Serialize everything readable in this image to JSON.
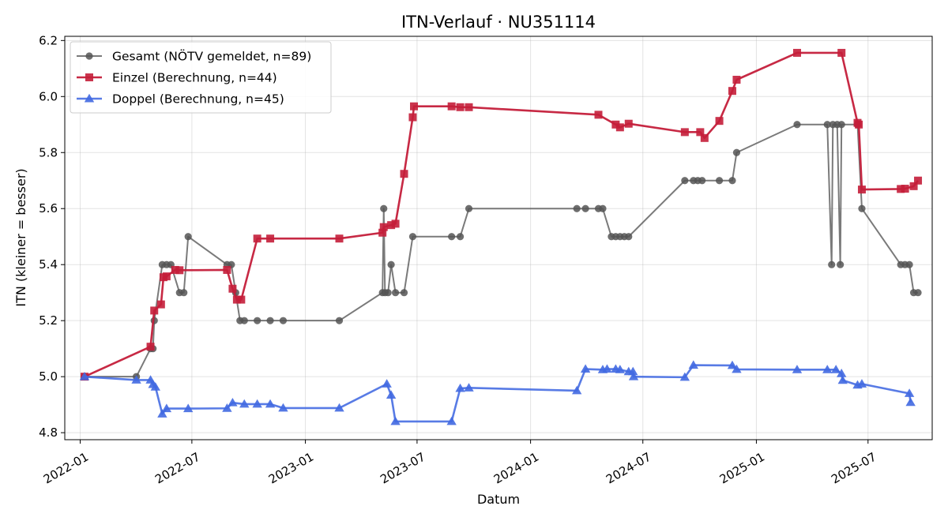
{
  "chart_data": {
    "type": "line",
    "title": "ITN-Verlauf · NU351114",
    "xlabel": "Datum",
    "ylabel": "ITN  (kleiner = besser)",
    "x_ticks": [
      "2022-01",
      "2022-07",
      "2023-01",
      "2023-07",
      "2024-01",
      "2024-07",
      "2025-01",
      "2025-07"
    ],
    "y_ticks": [
      "4.8",
      "5.0",
      "5.2",
      "5.4",
      "5.6",
      "5.8",
      "6.0",
      "6.2"
    ],
    "xlim": [
      "2021-12-07",
      "2025-10-13"
    ],
    "ylim": [
      4.775,
      6.215
    ],
    "grid": true,
    "legend_position": "top-left",
    "series": [
      {
        "name": "Gesamt (NÖTV gemeldet, n=89)",
        "color": "#555555",
        "marker": "circle",
        "points": [
          [
            "2022-01-08",
            5.0
          ],
          [
            "2022-04-02",
            5.0
          ],
          [
            "2022-04-25",
            5.1
          ],
          [
            "2022-04-29",
            5.1
          ],
          [
            "2022-05-01",
            5.2
          ],
          [
            "2022-05-14",
            5.4
          ],
          [
            "2022-05-21",
            5.4
          ],
          [
            "2022-05-28",
            5.4
          ],
          [
            "2022-06-11",
            5.3
          ],
          [
            "2022-06-18",
            5.3
          ],
          [
            "2022-06-25",
            5.5
          ],
          [
            "2022-08-27",
            5.4
          ],
          [
            "2022-09-03",
            5.4
          ],
          [
            "2022-09-10",
            5.3
          ],
          [
            "2022-09-17",
            5.2
          ],
          [
            "2022-09-24",
            5.2
          ],
          [
            "2022-10-15",
            5.2
          ],
          [
            "2022-11-05",
            5.2
          ],
          [
            "2022-11-26",
            5.2
          ],
          [
            "2023-02-25",
            5.2
          ],
          [
            "2023-05-06",
            5.3
          ],
          [
            "2023-05-08",
            5.6
          ],
          [
            "2023-05-10",
            5.3
          ],
          [
            "2023-05-15",
            5.3
          ],
          [
            "2023-05-20",
            5.4
          ],
          [
            "2023-05-27",
            5.3
          ],
          [
            "2023-06-10",
            5.3
          ],
          [
            "2023-06-24",
            5.5
          ],
          [
            "2023-08-26",
            5.5
          ],
          [
            "2023-09-09",
            5.5
          ],
          [
            "2023-09-23",
            5.6
          ],
          [
            "2024-03-16",
            5.6
          ],
          [
            "2024-03-30",
            5.6
          ],
          [
            "2024-04-20",
            5.6
          ],
          [
            "2024-04-27",
            5.6
          ],
          [
            "2024-05-11",
            5.5
          ],
          [
            "2024-05-18",
            5.5
          ],
          [
            "2024-05-25",
            5.5
          ],
          [
            "2024-06-01",
            5.5
          ],
          [
            "2024-06-08",
            5.5
          ],
          [
            "2024-09-07",
            5.7
          ],
          [
            "2024-09-21",
            5.7
          ],
          [
            "2024-09-28",
            5.7
          ],
          [
            "2024-10-05",
            5.7
          ],
          [
            "2024-11-02",
            5.7
          ],
          [
            "2024-11-23",
            5.7
          ],
          [
            "2024-11-30",
            5.8
          ],
          [
            "2025-03-08",
            5.9
          ],
          [
            "2025-04-26",
            5.9
          ],
          [
            "2025-05-03",
            5.4
          ],
          [
            "2025-05-05",
            5.9
          ],
          [
            "2025-05-12",
            5.9
          ],
          [
            "2025-05-17",
            5.4
          ],
          [
            "2025-05-19",
            5.9
          ],
          [
            "2025-06-14",
            5.9
          ],
          [
            "2025-06-21",
            5.6
          ],
          [
            "2025-08-23",
            5.4
          ],
          [
            "2025-08-30",
            5.4
          ],
          [
            "2025-09-06",
            5.4
          ],
          [
            "2025-09-13",
            5.3
          ],
          [
            "2025-09-20",
            5.3
          ]
        ]
      },
      {
        "name": "Einzel (Berechnung, n=44)",
        "color": "#c41e3a",
        "marker": "square",
        "points": [
          [
            "2022-01-08",
            5.0
          ],
          [
            "2022-04-25",
            5.107
          ],
          [
            "2022-05-01",
            5.236
          ],
          [
            "2022-05-12",
            5.258
          ],
          [
            "2022-05-16",
            5.355
          ],
          [
            "2022-05-21",
            5.358
          ],
          [
            "2022-06-04",
            5.381
          ],
          [
            "2022-06-11",
            5.38
          ],
          [
            "2022-08-27",
            5.381
          ],
          [
            "2022-09-05",
            5.314
          ],
          [
            "2022-09-12",
            5.275
          ],
          [
            "2022-09-19",
            5.275
          ],
          [
            "2022-10-15",
            5.493
          ],
          [
            "2022-11-05",
            5.493
          ],
          [
            "2023-02-25",
            5.493
          ],
          [
            "2023-05-06",
            5.514
          ],
          [
            "2023-05-08",
            5.534
          ],
          [
            "2023-05-20",
            5.541
          ],
          [
            "2023-05-27",
            5.546
          ],
          [
            "2023-06-10",
            5.724
          ],
          [
            "2023-06-24",
            5.926
          ],
          [
            "2023-06-26",
            5.965
          ],
          [
            "2023-08-26",
            5.965
          ],
          [
            "2023-09-09",
            5.962
          ],
          [
            "2023-09-23",
            5.962
          ],
          [
            "2024-04-20",
            5.935
          ],
          [
            "2024-05-18",
            5.9
          ],
          [
            "2024-05-25",
            5.89
          ],
          [
            "2024-06-08",
            5.903
          ],
          [
            "2024-09-07",
            5.873
          ],
          [
            "2024-10-02",
            5.873
          ],
          [
            "2024-10-09",
            5.852
          ],
          [
            "2024-11-02",
            5.913
          ],
          [
            "2024-11-23",
            6.02
          ],
          [
            "2024-11-30",
            6.06
          ],
          [
            "2025-03-08",
            6.156
          ],
          [
            "2025-05-19",
            6.156
          ],
          [
            "2025-06-14",
            5.906
          ],
          [
            "2025-06-16",
            5.9
          ],
          [
            "2025-06-21",
            5.668
          ],
          [
            "2025-08-23",
            5.67
          ],
          [
            "2025-08-30",
            5.671
          ],
          [
            "2025-09-13",
            5.68
          ],
          [
            "2025-09-20",
            5.7
          ]
        ]
      },
      {
        "name": "Doppel (Berechnung, n=45)",
        "color": "#4169e1",
        "marker": "triangle",
        "points": [
          [
            "2022-01-08",
            5.0
          ],
          [
            "2022-04-02",
            4.988
          ],
          [
            "2022-04-25",
            4.988
          ],
          [
            "2022-04-29",
            4.972
          ],
          [
            "2022-05-03",
            4.963
          ],
          [
            "2022-05-14",
            4.867
          ],
          [
            "2022-05-21",
            4.886
          ],
          [
            "2022-06-25",
            4.886
          ],
          [
            "2022-08-27",
            4.887
          ],
          [
            "2022-09-05",
            4.907
          ],
          [
            "2022-09-24",
            4.902
          ],
          [
            "2022-10-15",
            4.902
          ],
          [
            "2022-11-05",
            4.902
          ],
          [
            "2022-11-26",
            4.888
          ],
          [
            "2023-02-25",
            4.888
          ],
          [
            "2023-05-13",
            4.974
          ],
          [
            "2023-05-20",
            4.934
          ],
          [
            "2023-05-27",
            4.84
          ],
          [
            "2023-08-26",
            4.84
          ],
          [
            "2023-09-09",
            4.958
          ],
          [
            "2023-09-23",
            4.96
          ],
          [
            "2024-03-16",
            4.95
          ],
          [
            "2024-03-30",
            5.027
          ],
          [
            "2024-04-27",
            5.025
          ],
          [
            "2024-05-04",
            5.027
          ],
          [
            "2024-05-18",
            5.027
          ],
          [
            "2024-05-25",
            5.025
          ],
          [
            "2024-06-08",
            5.018
          ],
          [
            "2024-06-15",
            5.018
          ],
          [
            "2024-06-16",
            5.0
          ],
          [
            "2024-09-07",
            4.998
          ],
          [
            "2024-09-21",
            5.041
          ],
          [
            "2024-11-23",
            5.04
          ],
          [
            "2024-11-30",
            5.026
          ],
          [
            "2025-03-08",
            5.025
          ],
          [
            "2025-04-26",
            5.025
          ],
          [
            "2025-05-10",
            5.025
          ],
          [
            "2025-05-19",
            5.011
          ],
          [
            "2025-05-21",
            4.987
          ],
          [
            "2025-06-14",
            4.97
          ],
          [
            "2025-06-21",
            4.974
          ],
          [
            "2025-09-06",
            4.94
          ],
          [
            "2025-09-08",
            4.908
          ]
        ]
      }
    ]
  }
}
